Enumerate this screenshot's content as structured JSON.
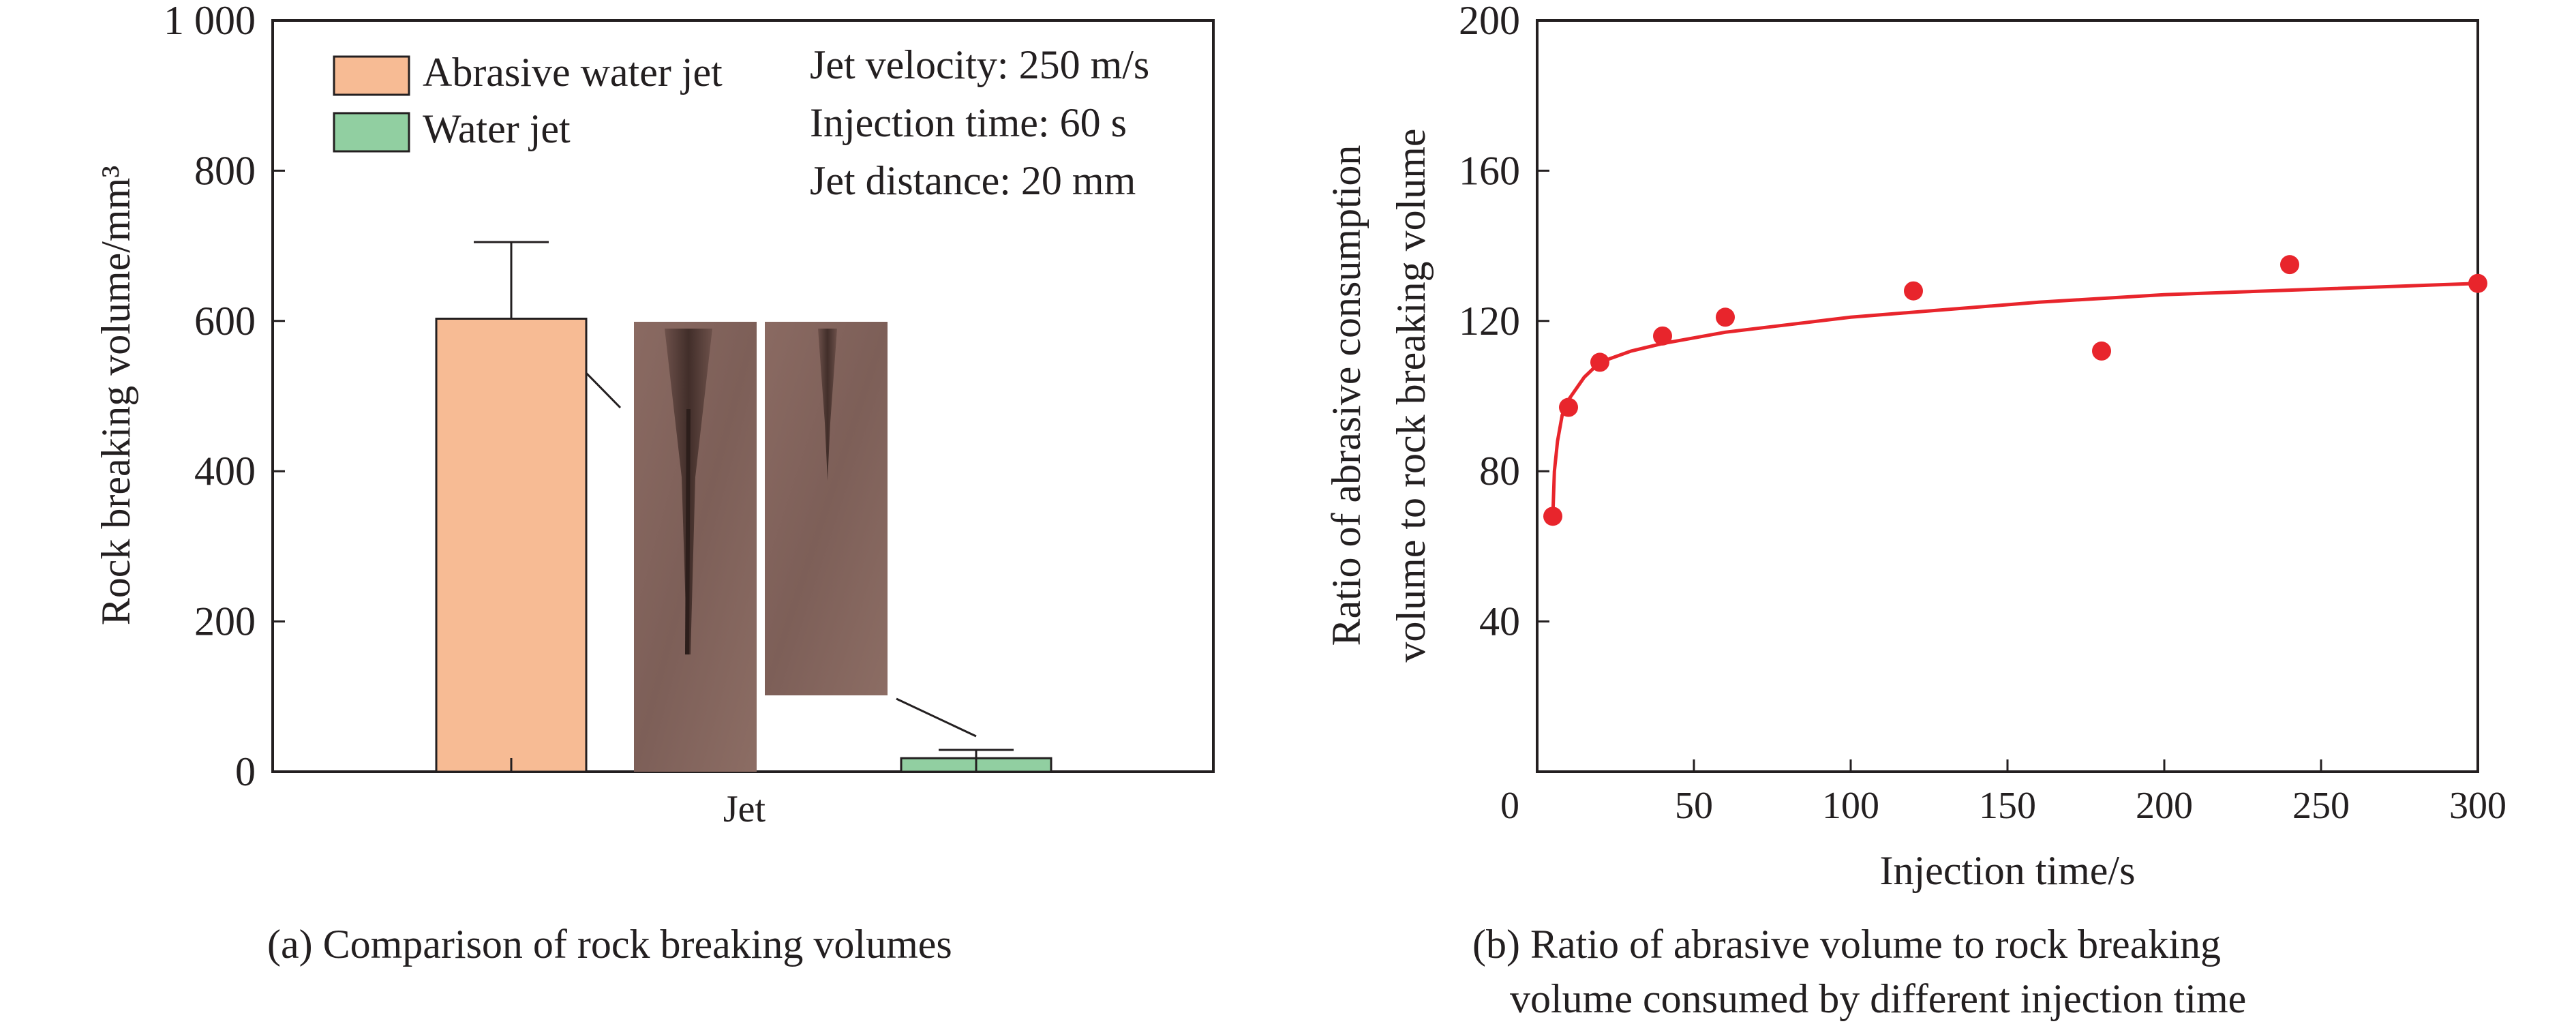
{
  "chart_data": [
    {
      "type": "bar",
      "categories": [
        "Jet"
      ],
      "series": [
        {
          "name": "Abrasive water jet",
          "values": [
            603
          ],
          "error_upper": [
            705
          ],
          "color": "#f7bb94"
        },
        {
          "name": "Water jet",
          "values": [
            18
          ],
          "error_upper": [
            29
          ],
          "color": "#91cfa1"
        }
      ],
      "xlabel": "Jet",
      "ylabel": "Rock breaking volume/mm³",
      "ylim": [
        0,
        1000
      ],
      "yticks": [
        0,
        200,
        400,
        600,
        800,
        1000
      ],
      "ytick_labels": [
        "0",
        "200",
        "400",
        "600",
        "800",
        "1 000"
      ],
      "annotations": [
        "Jet velocity: 250 m/s",
        "Injection time: 60 s",
        "Jet distance: 20 mm"
      ],
      "legend_position": "top-left",
      "caption": "(a) Comparison of rock breaking volumes"
    },
    {
      "type": "scatter",
      "points": [
        {
          "x": 5,
          "y": 68
        },
        {
          "x": 10,
          "y": 97
        },
        {
          "x": 20,
          "y": 109
        },
        {
          "x": 40,
          "y": 116
        },
        {
          "x": 60,
          "y": 121
        },
        {
          "x": 120,
          "y": 128
        },
        {
          "x": 180,
          "y": 112
        },
        {
          "x": 240,
          "y": 135
        },
        {
          "x": 300,
          "y": 130
        }
      ],
      "fit_curve": [
        {
          "x": 5,
          "y": 68
        },
        {
          "x": 5.5,
          "y": 80
        },
        {
          "x": 6.5,
          "y": 88
        },
        {
          "x": 8,
          "y": 95
        },
        {
          "x": 10,
          "y": 99
        },
        {
          "x": 15,
          "y": 105
        },
        {
          "x": 20,
          "y": 109
        },
        {
          "x": 30,
          "y": 112
        },
        {
          "x": 40,
          "y": 114
        },
        {
          "x": 60,
          "y": 117
        },
        {
          "x": 80,
          "y": 119
        },
        {
          "x": 100,
          "y": 121
        },
        {
          "x": 130,
          "y": 123
        },
        {
          "x": 160,
          "y": 125
        },
        {
          "x": 200,
          "y": 127
        },
        {
          "x": 250,
          "y": 128.5
        },
        {
          "x": 300,
          "y": 130
        }
      ],
      "color": "#e8252c",
      "xlabel": "Injection time/s",
      "ylabel": [
        "Ratio of abrasive consumption",
        "volume to rock breaking volume"
      ],
      "xlim": [
        0,
        300
      ],
      "ylim": [
        0,
        200
      ],
      "xticks": [
        50,
        100,
        150,
        200,
        250,
        300
      ],
      "yticks": [
        40,
        80,
        120,
        160,
        200
      ],
      "origin_label": "0",
      "caption": [
        "(b) Ratio of abrasive volume to rock breaking",
        "volume consumed by different injection time"
      ]
    }
  ]
}
